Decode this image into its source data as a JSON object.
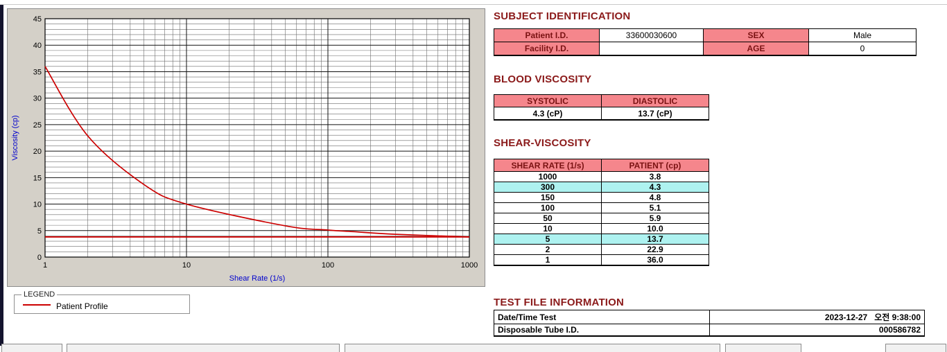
{
  "colors": {
    "heading": "#8B1A1A",
    "table_header_text": "#7A1212",
    "table_header_bg": "#F5868C",
    "highlight_bg": "#AEF2F0",
    "curve": "#CC0000",
    "axis_title": "#0000CD",
    "chart_bg": "#D4D0C8"
  },
  "chart_data": {
    "type": "line",
    "title": "",
    "xlabel": "Shear Rate (1/s)",
    "ylabel": "Viscosity (cp)",
    "x_scale": "log",
    "xlim": [
      1,
      1000
    ],
    "ylim": [
      0,
      45
    ],
    "x_ticks": [
      "1",
      "10",
      "100",
      "1000"
    ],
    "y_ticks": [
      45,
      40,
      35,
      30,
      25,
      20,
      15,
      10,
      5,
      0
    ],
    "grid": "on",
    "legend_position": "below-left",
    "x": [
      1,
      2,
      5,
      10,
      50,
      100,
      150,
      300,
      1000
    ],
    "series": [
      {
        "name": "Patient Profile",
        "color": "#CC0000",
        "values": [
          36.0,
          22.9,
          13.7,
          10.0,
          5.9,
          5.1,
          4.8,
          4.3,
          3.8
        ]
      }
    ],
    "baseline": 3.8
  },
  "legend": {
    "title": "LEGEND",
    "items": [
      {
        "label": "Patient Profile",
        "color": "#CC0000"
      }
    ]
  },
  "subject": {
    "heading": "SUBJECT IDENTIFICATION",
    "rows": [
      {
        "label1": "Patient I.D.",
        "value1": "33600030600",
        "label2": "SEX",
        "value2": "Male"
      },
      {
        "label1": "Facility I.D.",
        "value1": "",
        "label2": "AGE",
        "value2": "0"
      }
    ]
  },
  "blood_viscosity": {
    "heading": "BLOOD VISCOSITY",
    "headers": [
      "SYSTOLIC",
      "DIASTOLIC"
    ],
    "values": [
      "4.3 (cP)",
      "13.7 (cP)"
    ]
  },
  "shear_viscosity": {
    "heading": "SHEAR-VISCOSITY",
    "headers": [
      "SHEAR RATE (1/s)",
      "PATIENT (cp)"
    ],
    "rows": [
      {
        "rate": "1000",
        "value": "3.8",
        "highlight": false
      },
      {
        "rate": "300",
        "value": "4.3",
        "highlight": true
      },
      {
        "rate": "150",
        "value": "4.8",
        "highlight": false
      },
      {
        "rate": "100",
        "value": "5.1",
        "highlight": false
      },
      {
        "rate": "50",
        "value": "5.9",
        "highlight": false
      },
      {
        "rate": "10",
        "value": "10.0",
        "highlight": false
      },
      {
        "rate": "5",
        "value": "13.7",
        "highlight": true
      },
      {
        "rate": "2",
        "value": "22.9",
        "highlight": false
      },
      {
        "rate": "1",
        "value": "36.0",
        "highlight": false
      }
    ]
  },
  "test_file": {
    "heading": "TEST FILE INFORMATION",
    "rows": [
      {
        "label": "Date/Time Test",
        "value": "2023-12-27   오전 9:38:00"
      },
      {
        "label": "Disposable Tube I.D.",
        "value": "000586782"
      }
    ]
  }
}
